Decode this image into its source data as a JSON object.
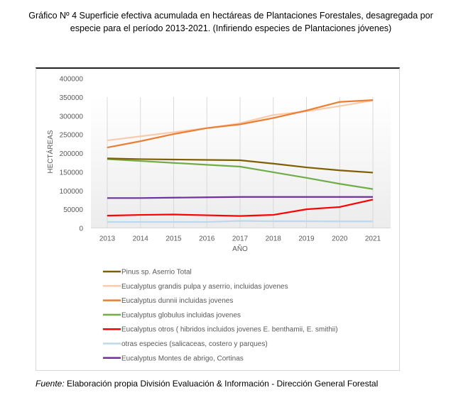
{
  "title": "Gráfico Nº 4 Superficie efectiva acumulada en hectáreas de Plantaciones Forestales, desagregada por especie para el período 2013-2021. (Infiriendo especies de Plantaciones jóvenes)",
  "footnote": {
    "label": "Fuente:",
    "text": " Elaboración propia División Evaluación & Información - Dirección General Forestal"
  },
  "chart_data": {
    "type": "line",
    "title": "",
    "xlabel": "AÑO",
    "ylabel": "HECTÁREAS",
    "ylim": [
      0,
      400000
    ],
    "yticks": [
      "0",
      "50000",
      "100000",
      "150000",
      "200000",
      "250000",
      "300000",
      "350000",
      "400000"
    ],
    "grid": "vertical",
    "legend_position": "bottom",
    "x": [
      "2013",
      "2014",
      "2015",
      "2016",
      "2017",
      "2018",
      "2019",
      "2020",
      "2021"
    ],
    "series": [
      {
        "name": "Pinus sp. Aserrio Total",
        "color": "#7f5f00",
        "values": [
          186000,
          184000,
          183000,
          182000,
          181000,
          172000,
          162000,
          154000,
          148000
        ]
      },
      {
        "name": "Eucalyptus grandis pulpa y aserrio, incluidas  jovenes",
        "color": "#f8cbad",
        "values": [
          234000,
          245000,
          256000,
          267000,
          280000,
          302000,
          312000,
          326000,
          341000
        ]
      },
      {
        "name": "Eucalyptus dunnii incluidas  jovenes",
        "color": "#ed7d31",
        "values": [
          215000,
          232000,
          251000,
          267000,
          277000,
          294000,
          314000,
          337000,
          342000
        ]
      },
      {
        "name": "Eucalyptus globulus incluidas  jovenes",
        "color": "#70ad47",
        "values": [
          184000,
          179000,
          174000,
          169000,
          164000,
          149000,
          134000,
          118000,
          104000
        ]
      },
      {
        "name": "Eucalyptus otros ( hibridos incluidos jovenes E. benthamii, E. smithii)",
        "color": "#ff0000",
        "values": [
          33000,
          35000,
          36000,
          34000,
          32000,
          35000,
          50000,
          56000,
          76000
        ]
      },
      {
        "name": "otras especies (salicaceas, costero y parques)",
        "color": "#bdd7ee",
        "values": [
          16000,
          16000,
          16000,
          16000,
          19000,
          18000,
          18000,
          17500,
          17500
        ]
      },
      {
        "name": "Eucalyptus Montes de abrigo, Cortinas",
        "color": "#7030a0",
        "values": [
          80000,
          80000,
          81000,
          82000,
          83000,
          83000,
          83000,
          83000,
          83000
        ]
      }
    ]
  }
}
